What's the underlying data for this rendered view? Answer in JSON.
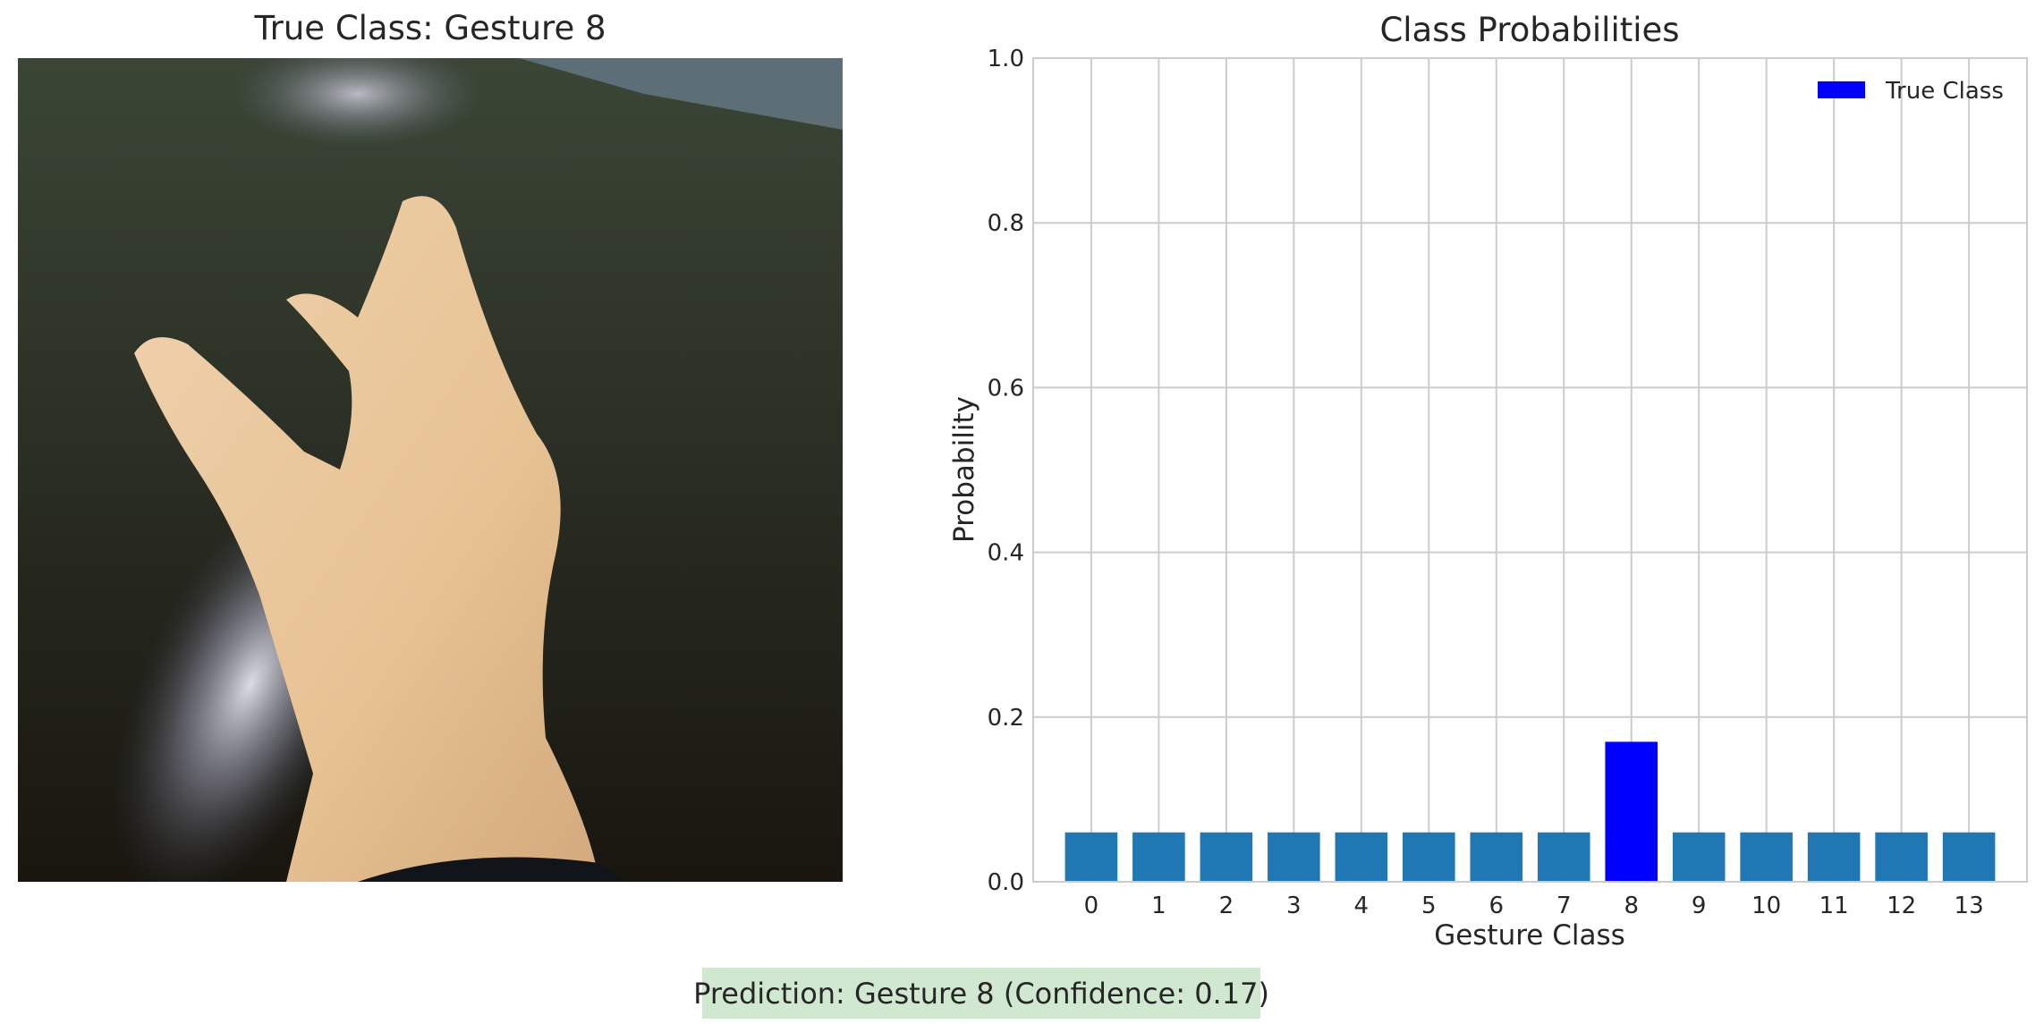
{
  "image_panel": {
    "title": "True Class: Gesture 8"
  },
  "prediction_text": "Prediction: Gesture 8 (Confidence: 0.17)",
  "chart_data": {
    "type": "bar",
    "title": "Class Probabilities",
    "xlabel": "Gesture Class",
    "ylabel": "Probability",
    "categories": [
      "0",
      "1",
      "2",
      "3",
      "4",
      "5",
      "6",
      "7",
      "8",
      "9",
      "10",
      "11",
      "12",
      "13"
    ],
    "values": [
      0.06,
      0.06,
      0.06,
      0.06,
      0.06,
      0.06,
      0.06,
      0.06,
      0.17,
      0.06,
      0.06,
      0.06,
      0.06,
      0.06
    ],
    "ylim": [
      0,
      1.0
    ],
    "yticks": [
      "0.0",
      "0.2",
      "0.4",
      "0.6",
      "0.8",
      "1.0"
    ],
    "grid": true,
    "highlight_index": 8,
    "legend": {
      "placement": "top-right",
      "entries": [
        {
          "label": "True Class",
          "color": "#0000ff"
        }
      ]
    },
    "colors": {
      "default_bar": "#1f77b4",
      "highlight_bar": "#0000ff",
      "grid": "#cccccc"
    }
  }
}
